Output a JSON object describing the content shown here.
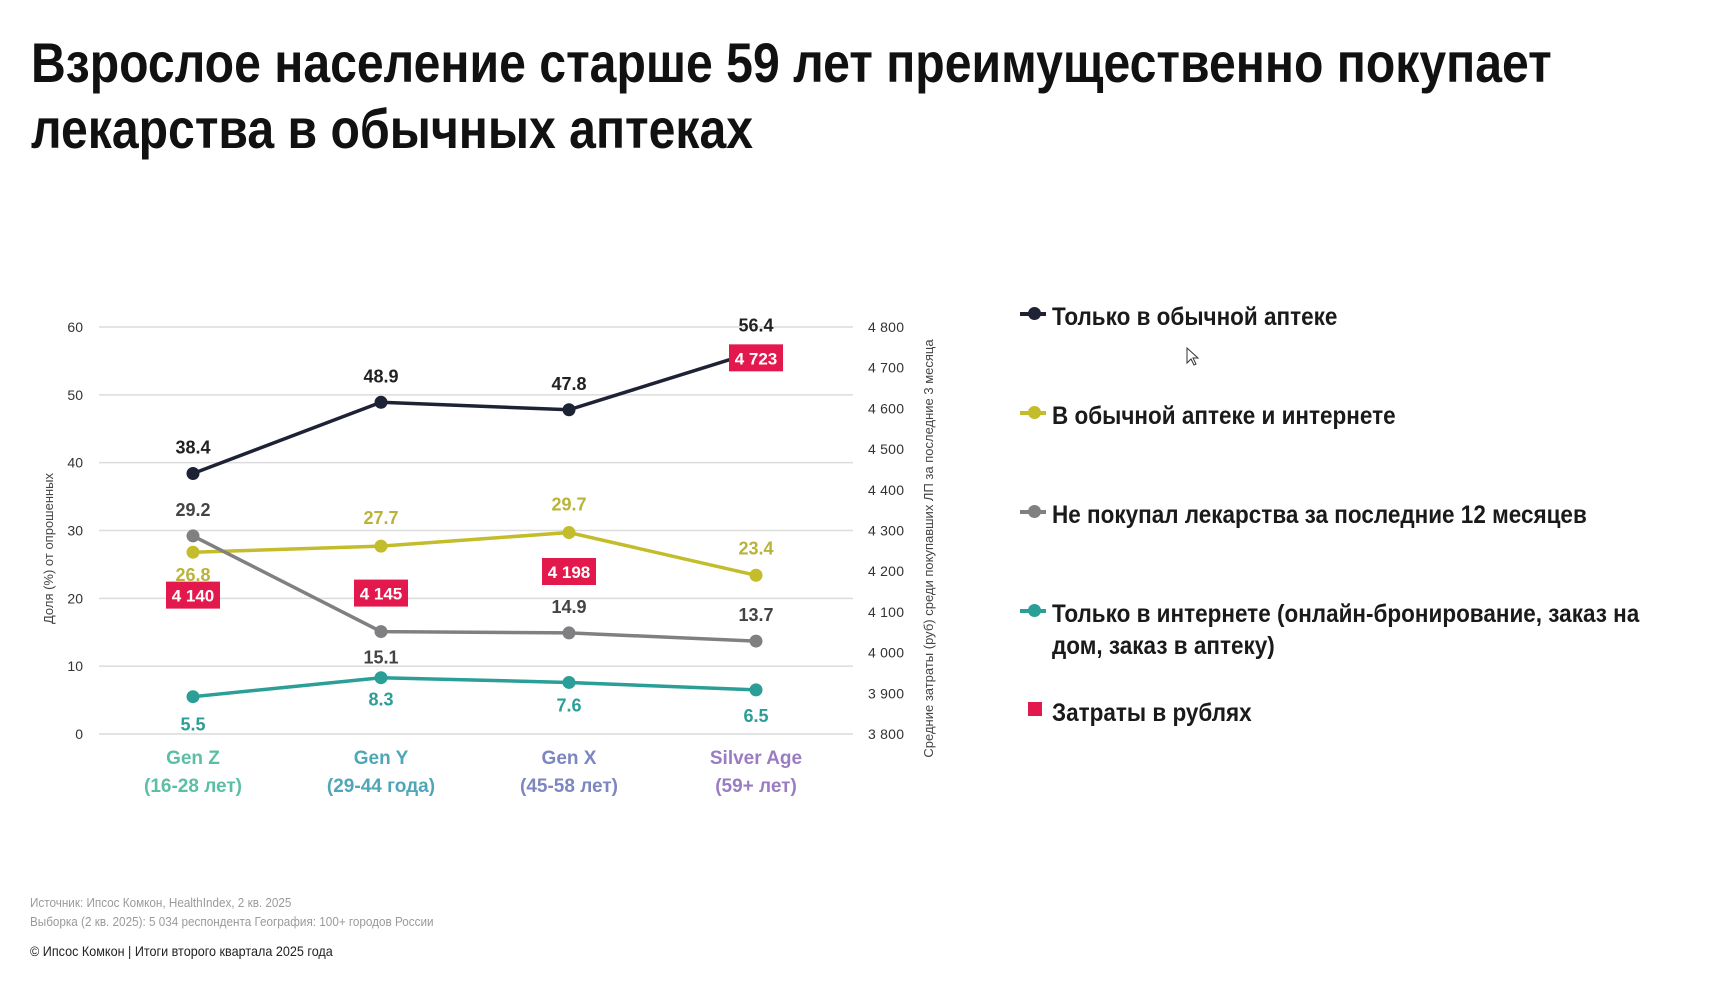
{
  "title": "Взрослое население старше 59 лет преимущественно покупает лекарства в обычных аптеках",
  "title_lines": [
    "Взрослое население старше 59 лет преимущественно покупает",
    "лекарства в обычных аптеках"
  ],
  "chart_data": {
    "type": "line",
    "categories": [
      [
        "Gen Z",
        "(16-28 лет)"
      ],
      [
        "Gen Y",
        "(29-44 года)"
      ],
      [
        "Gen X",
        "(45-58 лет)"
      ],
      [
        "Silver Age",
        "(59+ лет)"
      ]
    ],
    "category_colors": [
      "#5bbfa6",
      "#4ea7b9",
      "#7c86c0",
      "#9a7cc2"
    ],
    "ylabel": "Доля (%) от опрошенных",
    "ylim": [
      0,
      60
    ],
    "yticks": [
      0,
      10,
      20,
      30,
      40,
      50,
      60
    ],
    "y2label": "Средние затраты (руб) среди покупавших ЛП за последние 3 месяца",
    "y2lim": [
      3800,
      4800
    ],
    "y2ticks": [
      "3 800",
      "3 900",
      "4 000",
      "4 100",
      "4 200",
      "4 300",
      "4 400",
      "4 500",
      "4 600",
      "4 700",
      "4 800"
    ],
    "grid": true,
    "legend_position": "right",
    "series": [
      {
        "name": "Только в обычной аптеке",
        "color": "#1e2235",
        "values": [
          38.4,
          48.9,
          47.8,
          56.4
        ],
        "labels": [
          "38.4",
          "48.9",
          "47.8",
          "56.4"
        ]
      },
      {
        "name": "В обычной аптеке и интернете",
        "color": "#c3bc2b",
        "values": [
          26.8,
          27.7,
          29.7,
          23.4
        ],
        "labels": [
          "26.8",
          "27.7",
          "29.7",
          "23.4"
        ]
      },
      {
        "name": "Не покупал лекарства за последние 12 месяцев",
        "color": "#808082",
        "values": [
          29.2,
          15.1,
          14.9,
          13.7
        ],
        "labels": [
          "29.2",
          "15.1",
          "14.9",
          "13.7"
        ]
      },
      {
        "name": "Только в интернете (онлайн-бронирование, заказ на дом, заказ в аптеку)",
        "color": "#2a9e97",
        "values": [
          5.5,
          8.3,
          7.6,
          6.5
        ],
        "labels": [
          "5.5",
          "8.3",
          "7.6",
          "6.5"
        ]
      }
    ],
    "spending": {
      "name": "Затраты в рублях",
      "color": "#e3194d",
      "values": [
        4140,
        4145,
        4198,
        4723
      ],
      "labels": [
        "4 140",
        "4 145",
        "4 198",
        "4 723"
      ]
    }
  },
  "legend": [
    {
      "lines": [
        "Только в обычной аптеке"
      ]
    },
    {
      "lines": [
        "В обычной аптеке и интернете"
      ]
    },
    {
      "lines": [
        "Не покупал лекарства за последние 12 месяцев"
      ]
    },
    {
      "lines": [
        "Только в интернете (онлайн-бронирование, заказ на",
        "дом, заказ в аптеку)"
      ]
    },
    {
      "lines": [
        "Затраты в рублях"
      ]
    }
  ],
  "footer": {
    "source": "Источник: Ипсос Комкон, HealthIndex, 2 кв. 2025",
    "sample": "Выборка (2 кв. 2025): 5 034 респондента География: 100+ городов России",
    "copyright": "© Ипсос Комкон | Итоги второго квартала 2025 года"
  }
}
